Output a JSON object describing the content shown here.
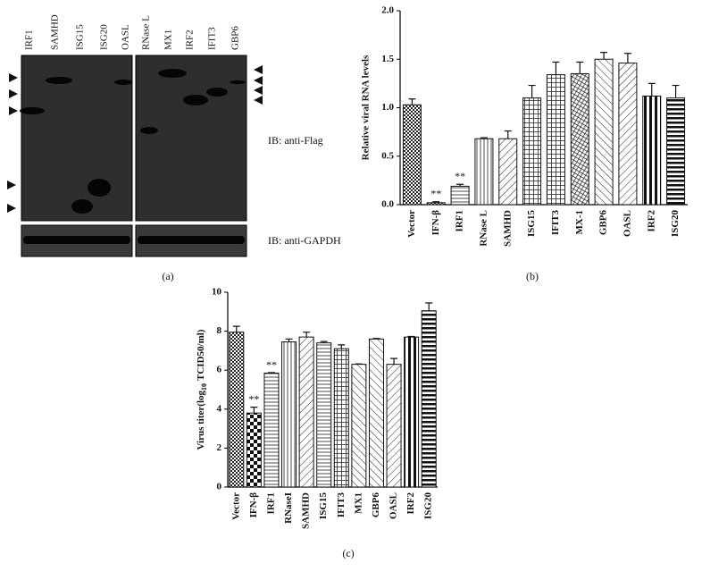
{
  "blot": {
    "lanes": [
      "IRF1",
      "SAMHD",
      "ISG15",
      "ISG20",
      "OASL",
      "RNase L",
      "MX1",
      "IRF2",
      "IFIT3",
      "GBP6"
    ],
    "top_label": "IB: anti-Flag",
    "bottom_label": "IB: anti-GAPDH",
    "caption": "(a)"
  },
  "chart_data": [
    {
      "type": "bar",
      "caption": "(b)",
      "y_label": "Relative viral RNA levels",
      "categories": [
        "Vector",
        "IFN-β",
        "IRF1",
        "RNase L",
        "SAMHD",
        "ISG15",
        "IFIT3",
        "MX-1",
        "GBP6",
        "OASL",
        "IRF2",
        "ISG20"
      ],
      "values": [
        1.03,
        0.02,
        0.19,
        0.68,
        0.68,
        1.1,
        1.34,
        1.35,
        1.5,
        1.46,
        1.12,
        1.1
      ],
      "errors": [
        0.06,
        0.01,
        0.02,
        0.01,
        0.08,
        0.13,
        0.13,
        0.12,
        0.07,
        0.1,
        0.13,
        0.13
      ],
      "patterns": [
        "checker",
        "checker",
        "hline",
        "vline",
        "diag",
        "grid",
        "grid",
        "weave",
        "diag-back",
        "diag",
        "bold-vline",
        "bold-hline"
      ],
      "ylim": [
        0,
        2
      ],
      "yticks": [
        {
          "value": 0,
          "label": "0.0"
        },
        {
          "value": 0.5,
          "label": "0.5"
        },
        {
          "value": 1,
          "label": "1.0"
        },
        {
          "value": 1.5,
          "label": "1.5"
        },
        {
          "value": 2,
          "label": "2.0"
        }
      ],
      "annotations": [
        {
          "text": "**",
          "category": "IFN-β"
        },
        {
          "text": "**",
          "category": "IRF1"
        }
      ]
    },
    {
      "type": "bar",
      "caption": "(c)",
      "y_label": [
        "Virus titer(log",
        "10",
        "TCID50/ml)"
      ],
      "categories": [
        "Vector",
        "IFN-β",
        "IRF1",
        "RNaseI",
        "SAMHD",
        "ISG15",
        "IFIT3",
        "MX1",
        "GBP6",
        "OASL",
        "IRF2",
        "ISG20"
      ],
      "values": [
        7.95,
        3.8,
        5.85,
        7.45,
        7.7,
        7.4,
        7.1,
        6.3,
        7.6,
        6.3,
        7.7,
        9.05
      ],
      "errors": [
        0.3,
        0.3,
        0.02,
        0.15,
        0.25,
        0.07,
        0.2,
        0.02,
        0.03,
        0.3,
        0.03,
        0.4
      ],
      "patterns": [
        "checker",
        "checker-big",
        "hline",
        "vline",
        "diag",
        "hline",
        "grid",
        "diag-back",
        "diag-back",
        "diag",
        "bold-vline",
        "bold-hline"
      ],
      "ylim": [
        0,
        10
      ],
      "yticks": [
        0,
        2,
        4,
        6,
        8,
        10
      ],
      "annotations": [
        {
          "text": "**",
          "category": "IFN-β"
        },
        {
          "text": "**",
          "category": "IRF1"
        }
      ]
    }
  ]
}
